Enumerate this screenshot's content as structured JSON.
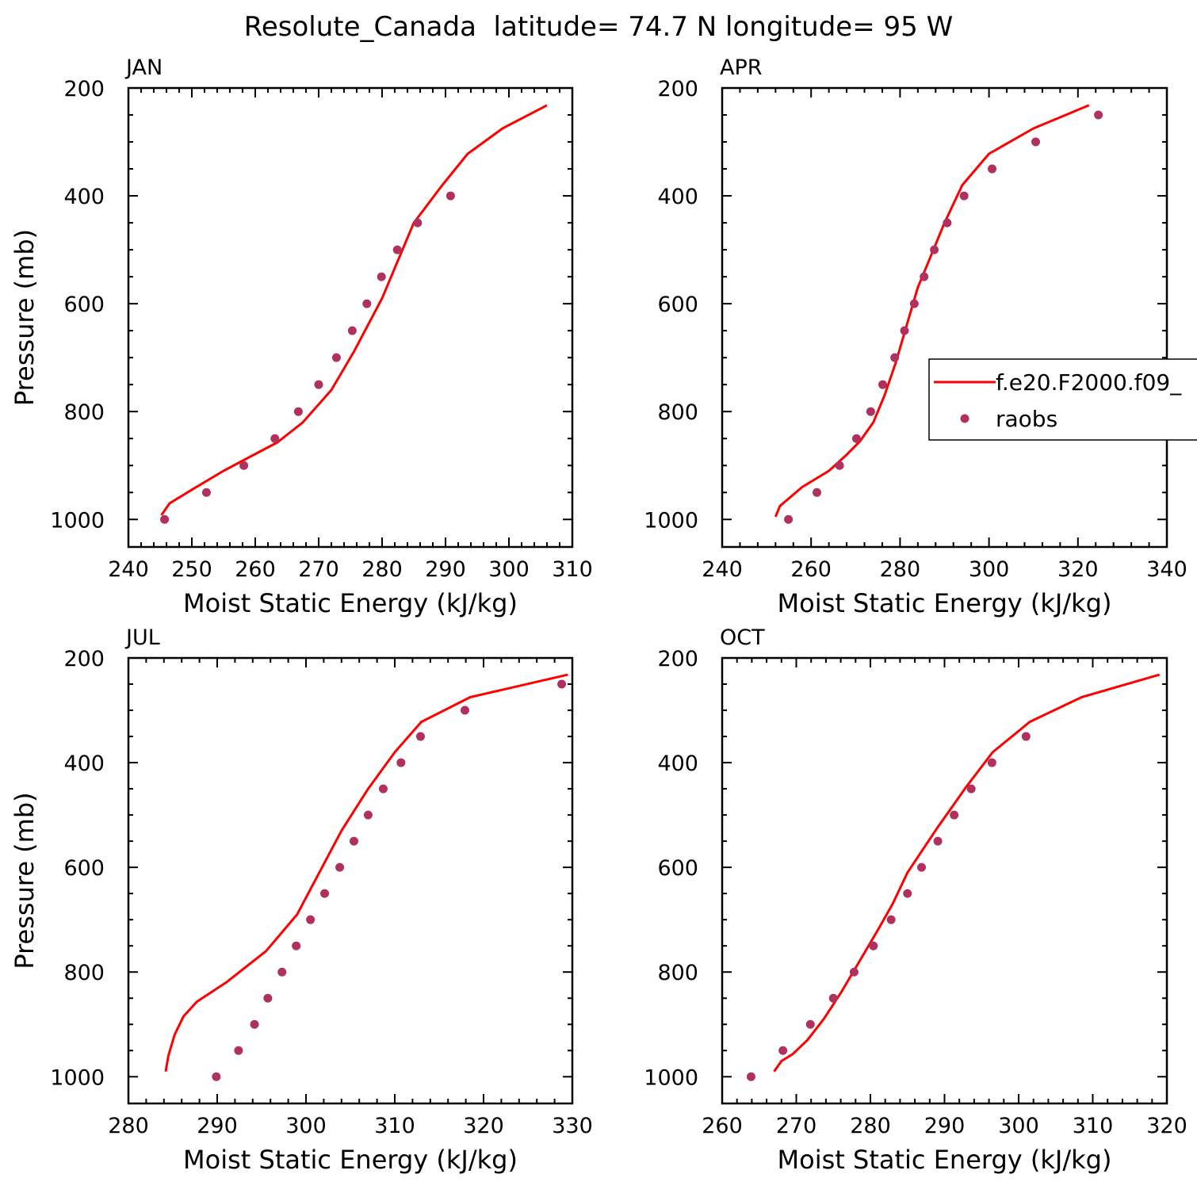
{
  "title": "Resolute_Canada  latitude= 74.7 N longitude= 95 W",
  "colors": {
    "model": "#ff0000",
    "obs": "#b03060",
    "axis": "#000000"
  },
  "legend": {
    "placement": "right-middle of APR panel (clipped at right edge)",
    "entries": [
      {
        "label": "f.e20.F2000.f09_",
        "style": "line",
        "color": "#ff0000"
      },
      {
        "label": "raobs",
        "style": "dot",
        "color": "#b03060"
      }
    ]
  },
  "chart_data": [
    {
      "type": "line+scatter",
      "panel": "JAN",
      "xlabel": "Moist Static Energy (kJ/kg)",
      "ylabel": "Pressure (mb)",
      "xlim": [
        240,
        310
      ],
      "xticks": [
        240,
        250,
        260,
        270,
        280,
        290,
        300,
        310
      ],
      "ylim": [
        1025,
        200
      ],
      "yticks": [
        200,
        400,
        600,
        800,
        1000
      ],
      "series": [
        {
          "name": "f.e20.F2000.f09_",
          "kind": "line",
          "x": [
            245.2,
            246.5,
            250,
            255,
            259,
            263.5,
            267.5,
            272,
            275.5,
            280,
            285,
            289.5,
            293.5,
            299,
            306
          ],
          "y": [
            992,
            970,
            945,
            910,
            885,
            857,
            820,
            760,
            690,
            590,
            450,
            380,
            322,
            275,
            232
          ]
        },
        {
          "name": "raobs",
          "kind": "scatter",
          "x": [
            245.7,
            252.3,
            258.2,
            263.1,
            266.8,
            270.0,
            272.8,
            275.3,
            277.6,
            279.9,
            282.4,
            285.6,
            290.8
          ],
          "y": [
            1000,
            950,
            900,
            850,
            800,
            750,
            700,
            650,
            600,
            550,
            500,
            450,
            400
          ]
        }
      ]
    },
    {
      "type": "line+scatter",
      "panel": "APR",
      "xlabel": "Moist Static Energy (kJ/kg)",
      "ylabel": "",
      "xlim": [
        240,
        340
      ],
      "xticks": [
        240,
        260,
        280,
        300,
        320,
        340
      ],
      "ylim": [
        1025,
        200
      ],
      "yticks": [
        200,
        400,
        600,
        800,
        1000
      ],
      "series": [
        {
          "name": "f.e20.F2000.f09_",
          "kind": "line",
          "x": [
            252,
            253,
            258,
            264,
            268,
            271,
            274,
            276.5,
            279,
            281.5,
            284,
            287,
            290,
            294,
            300,
            310,
            322.5
          ],
          "y": [
            995,
            975,
            940,
            910,
            880,
            855,
            820,
            770,
            710,
            640,
            570,
            510,
            450,
            380,
            322,
            275,
            232
          ]
        },
        {
          "name": "raobs",
          "kind": "scatter",
          "x": [
            254.9,
            261.3,
            266.4,
            270.2,
            273.4,
            276.1,
            278.8,
            281.0,
            283.2,
            285.4,
            287.7,
            290.6,
            294.4,
            300.7,
            310.5,
            324.6
          ],
          "y": [
            1000,
            950,
            900,
            850,
            800,
            750,
            700,
            650,
            600,
            550,
            500,
            450,
            400,
            350,
            300,
            250
          ]
        }
      ]
    },
    {
      "type": "line+scatter",
      "panel": "JUL",
      "xlabel": "Moist Static Energy (kJ/kg)",
      "ylabel": "Pressure (mb)",
      "xlim": [
        280,
        330
      ],
      "xticks": [
        280,
        290,
        300,
        310,
        320,
        330
      ],
      "ylim": [
        1025,
        200
      ],
      "yticks": [
        200,
        400,
        600,
        800,
        1000
      ],
      "series": [
        {
          "name": "f.e20.F2000.f09_",
          "kind": "line",
          "x": [
            284.2,
            284.5,
            285.2,
            286.2,
            287.7,
            291,
            295.5,
            299,
            301.5,
            304,
            307,
            310,
            313,
            318.5,
            329.5
          ],
          "y": [
            990,
            960,
            920,
            885,
            857,
            820,
            760,
            690,
            610,
            530,
            450,
            380,
            322,
            275,
            232
          ]
        },
        {
          "name": "raobs",
          "kind": "scatter",
          "x": [
            289.9,
            292.4,
            294.2,
            295.7,
            297.3,
            298.9,
            300.5,
            302.1,
            303.8,
            305.4,
            307.0,
            308.7,
            310.7,
            312.9,
            317.9,
            328.8
          ],
          "y": [
            1000,
            950,
            900,
            850,
            800,
            750,
            700,
            650,
            600,
            550,
            500,
            450,
            400,
            350,
            300,
            250
          ]
        }
      ]
    },
    {
      "type": "line+scatter",
      "panel": "OCT",
      "xlabel": "Moist Static Energy (kJ/kg)",
      "ylabel": "",
      "xlim": [
        260,
        320
      ],
      "xticks": [
        260,
        270,
        280,
        290,
        300,
        310,
        320
      ],
      "ylim": [
        1025,
        200
      ],
      "yticks": [
        200,
        400,
        600,
        800,
        1000
      ],
      "series": [
        {
          "name": "f.e20.F2000.f09_",
          "kind": "line",
          "x": [
            267,
            268,
            269.5,
            271.5,
            273.7,
            276,
            278.5,
            281,
            283,
            285,
            289,
            293,
            296.5,
            301.5,
            308.5,
            319
          ],
          "y": [
            990,
            970,
            957,
            930,
            890,
            840,
            780,
            720,
            670,
            610,
            525,
            445,
            380,
            322,
            275,
            232
          ]
        },
        {
          "name": "raobs",
          "kind": "scatter",
          "x": [
            263.9,
            268.2,
            271.9,
            275.0,
            277.8,
            280.4,
            282.8,
            285.0,
            286.9,
            289.1,
            291.3,
            293.6,
            296.4,
            301.0
          ],
          "y": [
            1000,
            950,
            900,
            850,
            800,
            750,
            700,
            650,
            600,
            550,
            500,
            450,
            400,
            350
          ]
        }
      ]
    }
  ]
}
